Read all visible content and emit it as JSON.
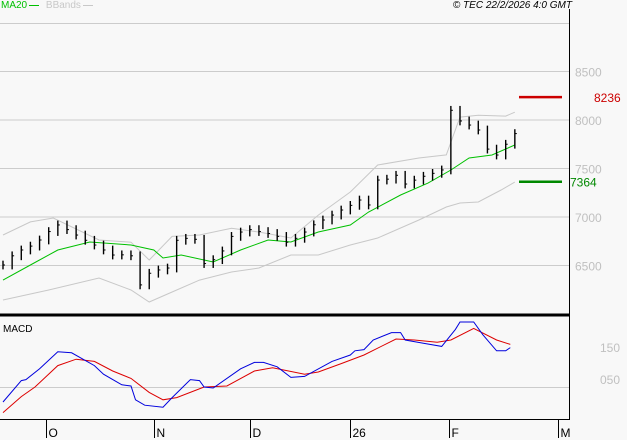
{
  "legend": {
    "ma_label": "MA20",
    "bbands_label": "BBands"
  },
  "copyright": "© TEC 22/2/2026 4:0 GMT",
  "colors": {
    "bars": "#000000",
    "ma20": "#00c000",
    "bbands": "#c8c8c8",
    "resistance": "#cc0000",
    "support": "#008800",
    "macd": "#0000dd",
    "signal": "#dd0000",
    "axis_text": "#c0c0c0"
  },
  "chart_data": [
    {
      "type": "bar",
      "panel": "price",
      "y_ticks": [
        6500,
        7000,
        7500,
        8000,
        8500
      ],
      "ylim": [
        6050,
        8980
      ],
      "x_ticks": [
        {
          "label": "O",
          "index": 9.5
        },
        {
          "label": "N",
          "index": 33
        },
        {
          "label": "D",
          "index": 54
        },
        {
          "label": "26",
          "index": 76
        },
        {
          "label": "F",
          "index": 97.5
        },
        {
          "label": "M",
          "index": 121.5
        }
      ],
      "closes": [
        6505,
        6600,
        6660,
        6700,
        6763,
        6850,
        6918,
        6870,
        6814,
        6760,
        6711,
        6660,
        6608,
        6610,
        6600,
        6300,
        6420,
        6454,
        6474,
        6760,
        6780,
        6770,
        6520,
        6560,
        6650,
        6800,
        6845,
        6870,
        6850,
        6830,
        6800,
        6740,
        6780,
        6845,
        6920,
        6969,
        7020,
        7072,
        7120,
        7175,
        7124,
        7381,
        7390,
        7430,
        7340,
        7380,
        7420,
        7450,
        7485,
        8100,
        7990,
        7948,
        7897,
        7700,
        7639,
        7750,
        7860
      ],
      "ma20": [
        [
          0,
          6350
        ],
        [
          6,
          6505
        ],
        [
          12,
          6660
        ],
        [
          19,
          6742
        ],
        [
          28,
          6711
        ],
        [
          33,
          6660
        ],
        [
          35,
          6577
        ],
        [
          39,
          6608
        ],
        [
          46,
          6536
        ],
        [
          52,
          6660
        ],
        [
          58,
          6763
        ],
        [
          63,
          6742
        ],
        [
          69,
          6845
        ],
        [
          76,
          6918
        ],
        [
          80,
          7052
        ],
        [
          87,
          7227
        ],
        [
          93,
          7350
        ],
        [
          98,
          7485
        ],
        [
          102,
          7608
        ],
        [
          107,
          7639
        ],
        [
          112,
          7742
        ]
      ],
      "bband_upper": [
        [
          0,
          6814
        ],
        [
          6,
          6950
        ],
        [
          11,
          6990
        ],
        [
          21,
          6763
        ],
        [
          28,
          6740
        ],
        [
          32,
          6557
        ],
        [
          37,
          6800
        ],
        [
          43,
          6814
        ],
        [
          50,
          6885
        ],
        [
          56,
          6845
        ],
        [
          63,
          6783
        ],
        [
          69,
          7020
        ],
        [
          76,
          7258
        ],
        [
          82,
          7536
        ],
        [
          91,
          7608
        ],
        [
          97,
          7640
        ],
        [
          100,
          8030
        ],
        [
          104,
          8050
        ],
        [
          110,
          8040
        ],
        [
          112,
          8080
        ]
      ],
      "bband_lower": [
        [
          0,
          6144
        ],
        [
          10,
          6247
        ],
        [
          21,
          6371
        ],
        [
          28,
          6247
        ],
        [
          32,
          6124
        ],
        [
          38,
          6247
        ],
        [
          43,
          6350
        ],
        [
          50,
          6433
        ],
        [
          56,
          6474
        ],
        [
          63,
          6608
        ],
        [
          69,
          6608
        ],
        [
          76,
          6711
        ],
        [
          82,
          6783
        ],
        [
          91,
          6969
        ],
        [
          97,
          7103
        ],
        [
          100,
          7144
        ],
        [
          104,
          7155
        ],
        [
          109,
          7278
        ],
        [
          112,
          7360
        ]
      ],
      "levels": [
        {
          "label": "8236",
          "value": 8236,
          "kind": "resistance"
        },
        {
          "label": "7364",
          "value": 7364,
          "kind": "support"
        }
      ]
    },
    {
      "type": "line",
      "panel": "macd",
      "title": "MACD",
      "y_ticks": [
        {
          "label": "150",
          "value": 150
        },
        {
          "label": "050",
          "value": 50
        }
      ],
      "ylim": [
        -100,
        230
      ],
      "macd": [
        [
          0,
          -47
        ],
        [
          4,
          20
        ],
        [
          5,
          23
        ],
        [
          8,
          57
        ],
        [
          12,
          110
        ],
        [
          15,
          107
        ],
        [
          20,
          67
        ],
        [
          22,
          40
        ],
        [
          26,
          7
        ],
        [
          28,
          3
        ],
        [
          29,
          -40
        ],
        [
          31,
          -57
        ],
        [
          35,
          -63
        ],
        [
          37,
          -33
        ],
        [
          41,
          23
        ],
        [
          43,
          20
        ],
        [
          44,
          0
        ],
        [
          46,
          -3
        ],
        [
          52,
          57
        ],
        [
          55,
          77
        ],
        [
          57,
          77
        ],
        [
          60,
          63
        ],
        [
          63,
          30
        ],
        [
          66,
          33
        ],
        [
          72,
          80
        ],
        [
          76,
          100
        ],
        [
          77,
          113
        ],
        [
          79,
          117
        ],
        [
          81,
          147
        ],
        [
          85,
          170
        ],
        [
          87,
          170
        ],
        [
          88,
          147
        ],
        [
          92,
          137
        ],
        [
          96,
          127
        ],
        [
          99,
          180
        ],
        [
          100,
          203
        ],
        [
          103,
          203
        ],
        [
          105,
          163
        ],
        [
          108,
          113
        ],
        [
          110,
          113
        ],
        [
          111,
          123
        ]
      ],
      "signal": [
        [
          0,
          -80
        ],
        [
          4,
          -30
        ],
        [
          7,
          0
        ],
        [
          12,
          67
        ],
        [
          16,
          87
        ],
        [
          20,
          80
        ],
        [
          24,
          50
        ],
        [
          28,
          27
        ],
        [
          32,
          -17
        ],
        [
          35,
          -40
        ],
        [
          38,
          -33
        ],
        [
          44,
          0
        ],
        [
          49,
          3
        ],
        [
          55,
          50
        ],
        [
          59,
          60
        ],
        [
          66,
          40
        ],
        [
          69,
          47
        ],
        [
          74,
          73
        ],
        [
          79,
          100
        ],
        [
          86,
          150
        ],
        [
          90,
          147
        ],
        [
          95,
          140
        ],
        [
          98,
          147
        ],
        [
          103,
          183
        ],
        [
          108,
          147
        ],
        [
          111,
          133
        ]
      ]
    }
  ]
}
